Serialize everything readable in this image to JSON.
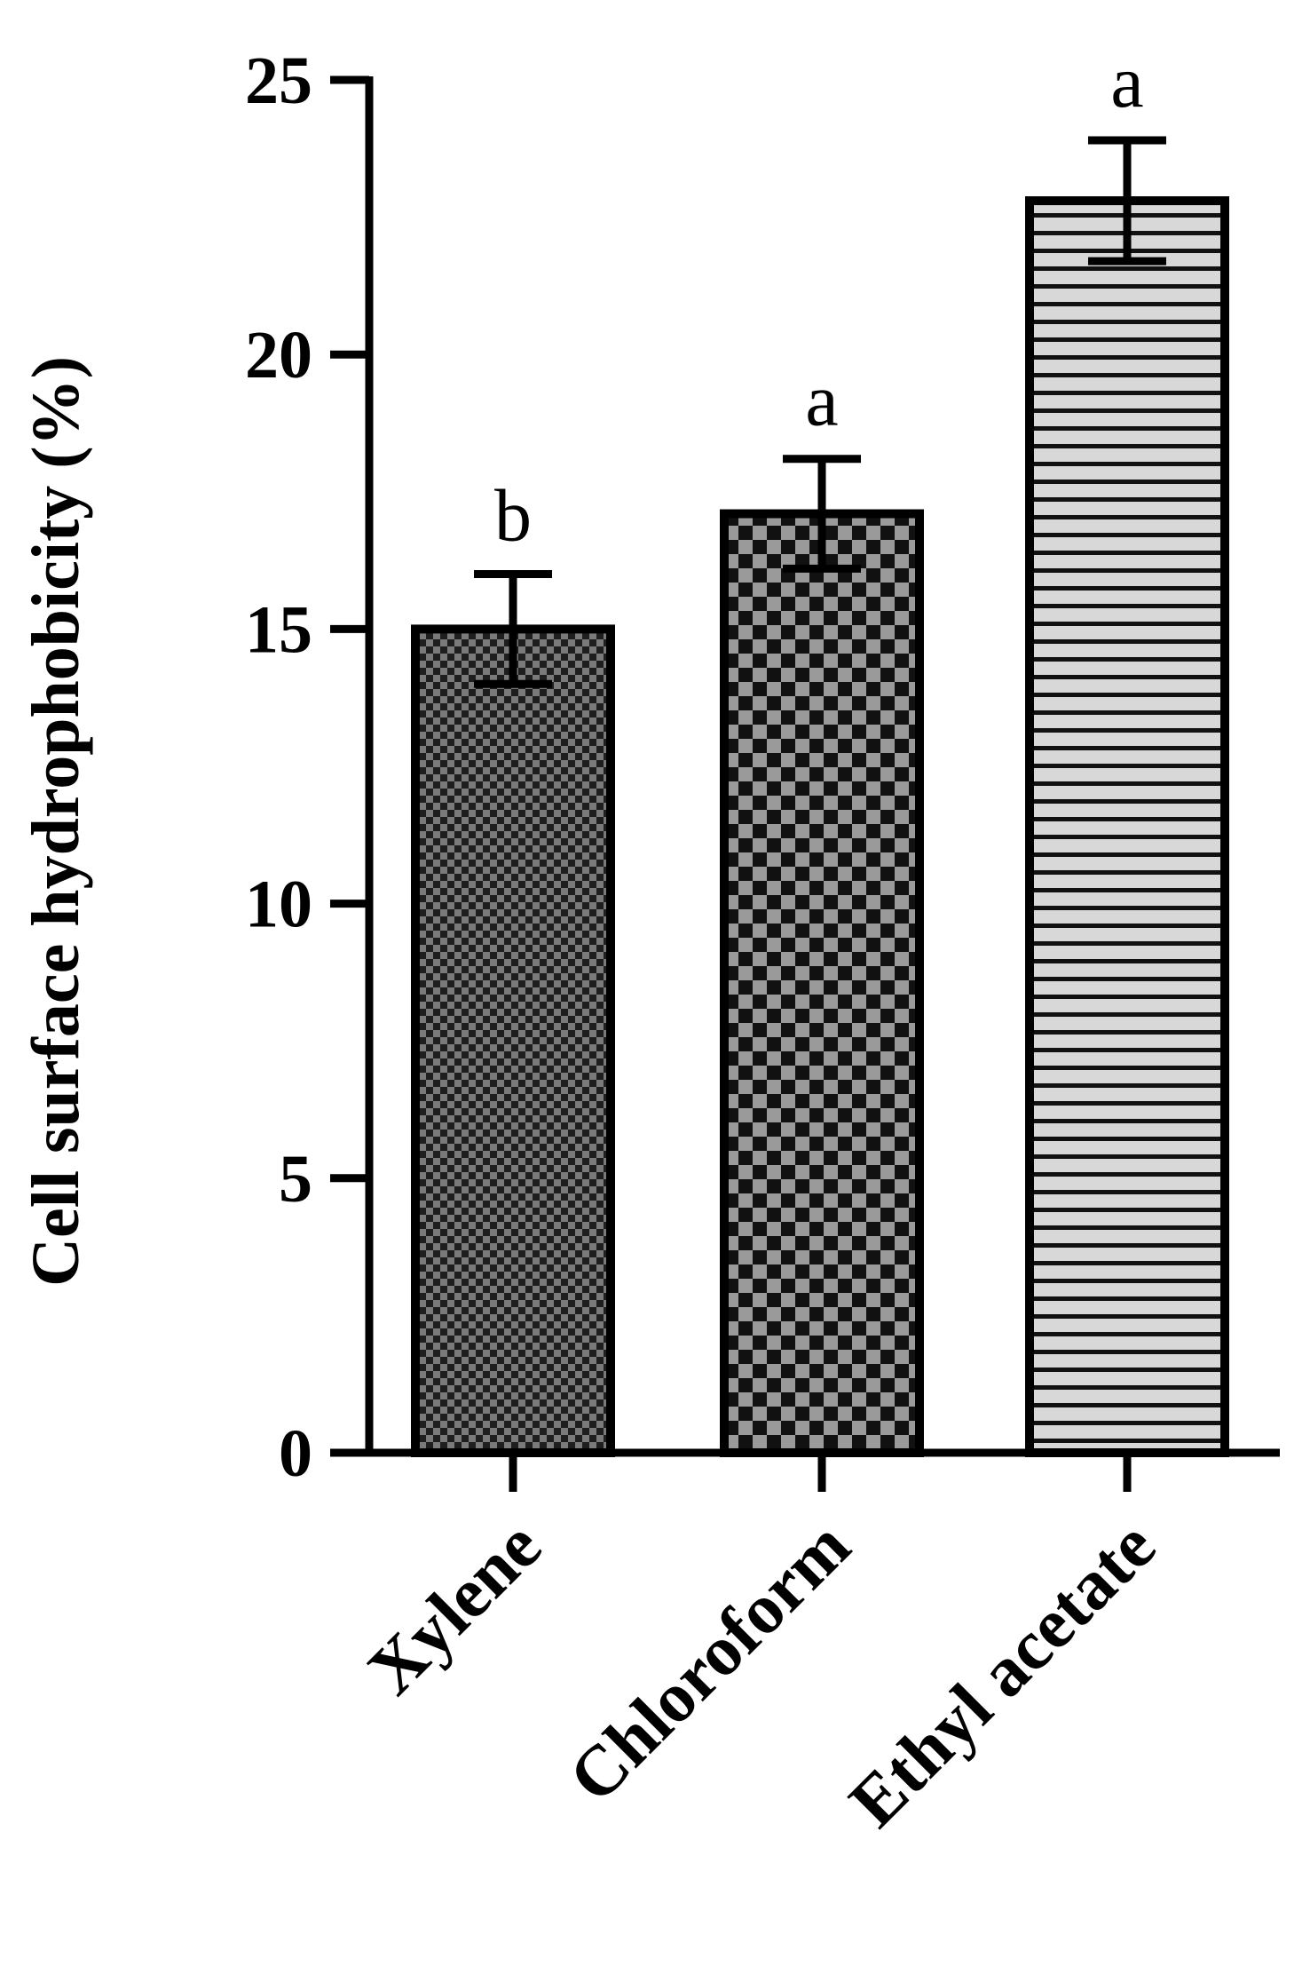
{
  "chart_data": {
    "type": "bar",
    "categories": [
      "Xylene",
      "Chloroform",
      "Ethyl acetate"
    ],
    "values": [
      15.0,
      17.1,
      22.8
    ],
    "errors": [
      1.0,
      1.0,
      1.1
    ],
    "significance": [
      "b",
      "a",
      "a"
    ],
    "ylabel": "Cell surface hydrophobicity (%)",
    "xlabel": "",
    "title": "",
    "ylim": [
      0,
      25
    ],
    "yticks": [
      0,
      5,
      10,
      15,
      20,
      25
    ],
    "ytick_labels": [
      "0",
      "5",
      "10",
      "15",
      "20",
      "25"
    ],
    "patterns": [
      "fine-dark-checker",
      "coarse-checker",
      "horizontal-stripes"
    ],
    "grid": false,
    "legend": "none"
  },
  "colors": {
    "axis": "#000000",
    "bar_outline": "#000000",
    "pattern_dark": "#1e1e1e",
    "pattern_mid": "#9a9a9a",
    "pattern_light": "#d8d8d8"
  }
}
